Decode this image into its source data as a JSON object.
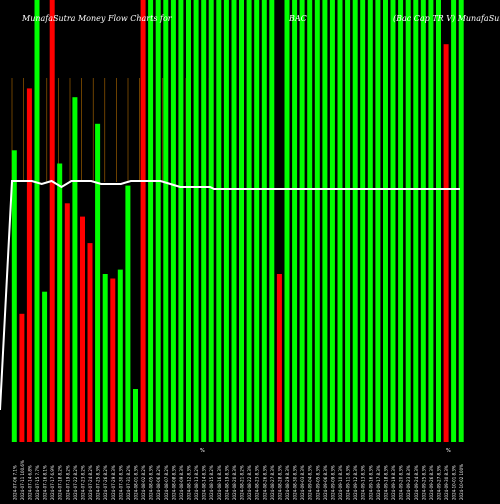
{
  "header": {
    "left": "MunafaSutra Money Flow  Charts for",
    "center": "BAC",
    "right": "(Bac Cap TR V)  MunafaSutra"
  },
  "chart_data": {
    "type": "bar",
    "title": "MunafaSutra Money Flow  Charts for BAC (Bac Cap TR V) MunafaSutra",
    "bar_colors": {
      "up": "#00ff00",
      "down": "#ff0000",
      "line": "#ffffff",
      "grid": "#b36b00"
    },
    "ylim": [
      0,
      100
    ],
    "categories": [
      "2024-07-06 7.1%",
      "2024-07-11 100.6%",
      "2024-07-14 6.8%",
      "2024-07-15 7.7%",
      "2024-07-16 8.1%",
      "2024-07-17 6.9%",
      "2024-07-18 8.2%",
      "2024-07-19 8.2%",
      "2024-07-22 8.2%",
      "2024-07-23 8.2%",
      "2024-07-24 8.2%",
      "2024-07-25 8.3%",
      "2024-07-26 8.2%",
      "2024-07-29 8.3%",
      "2024-07-30 8.3%",
      "2024-07-31 8.2%",
      "2024-08-01 8.3%",
      "2024-08-02 8.2%",
      "2024-08-05 8.3%",
      "2024-08-06 8.2%",
      "2024-08-07 8.2%",
      "2024-08-08 8.3%",
      "2024-08-09 8.3%",
      "2024-08-12 8.3%",
      "2024-08-13 8.2%",
      "2024-08-14 8.3%",
      "2024-08-15 8.2%",
      "2024-08-16 8.3%",
      "2024-08-19 8.3%",
      "2024-08-20 8.3%",
      "2024-08-21 8.2%",
      "2024-08-22 8.3%",
      "2024-08-23 8.3%",
      "2024-08-26 8.3%",
      "2024-08-27 8.3%",
      "2024-08-28 8.3%",
      "2024-08-29 8.3%",
      "2024-08-30 8.3%",
      "2024-09-03 8.3%",
      "2024-09-04 8.3%",
      "2024-09-05 8.3%",
      "2024-09-06 8.3%",
      "2024-09-09 8.3%",
      "2024-09-10 8.3%",
      "2024-09-11 8.3%",
      "2024-09-12 8.3%",
      "2024-09-13 8.3%",
      "2024-09-16 8.3%",
      "2024-09-17 8.3%",
      "2024-09-18 8.3%",
      "2024-09-19 8.3%",
      "2024-09-20 8.3%",
      "2024-09-23 8.3%",
      "2024-09-24 8.3%",
      "2024-09-25 8.3%",
      "2024-09-26 8.3%",
      "2024-09-27 8.3%",
      "2024-09-30 8.3%",
      "2024-10-01 8.3%",
      "2024-10-02 100%"
    ],
    "series": [
      {
        "values": [
          0,
          66,
          0,
          29,
          0,
          80,
          0,
          100,
          0,
          34,
          0,
          100,
          0,
          63,
          0,
          0,
          0,
          78,
          0,
          54,
          0,
          71,
          0,
          0,
          0,
          0,
          0,
          46,
          0,
          45,
          0,
          45,
          0,
          0,
          0,
          47,
          0,
          57,
          0,
          12,
          0,
          100,
          0,
          100,
          0,
          100,
          0,
          100,
          0,
          100,
          0,
          100,
          0,
          100,
          0,
          100,
          0,
          100,
          0,
          100
        ]
      }
    ],
    "bars": [
      {
        "value": 66,
        "dir": "up"
      },
      {
        "value": 29,
        "dir": "down"
      },
      {
        "value": 80,
        "dir": "down"
      },
      {
        "value": 100,
        "dir": "up"
      },
      {
        "value": 34,
        "dir": "up"
      },
      {
        "value": 100,
        "dir": "down"
      },
      {
        "value": 63,
        "dir": "up"
      },
      {
        "value": 54,
        "dir": "down"
      },
      {
        "value": 78,
        "dir": "up"
      },
      {
        "value": 51,
        "dir": "down"
      },
      {
        "value": 45,
        "dir": "down"
      },
      {
        "value": 72,
        "dir": "up"
      },
      {
        "value": 38,
        "dir": "up"
      },
      {
        "value": 37,
        "dir": "down"
      },
      {
        "value": 39,
        "dir": "up"
      },
      {
        "value": 58,
        "dir": "up"
      },
      {
        "value": 12,
        "dir": "up"
      },
      {
        "value": 100,
        "dir": "down"
      },
      {
        "value": 100,
        "dir": "up"
      },
      {
        "value": 100,
        "dir": "up"
      },
      {
        "value": 100,
        "dir": "up"
      },
      {
        "value": 100,
        "dir": "up"
      },
      {
        "value": 100,
        "dir": "up"
      },
      {
        "value": 100,
        "dir": "up"
      },
      {
        "value": 100,
        "dir": "up"
      },
      {
        "value": 100,
        "dir": "up"
      },
      {
        "value": 100,
        "dir": "up"
      },
      {
        "value": 100,
        "dir": "up"
      },
      {
        "value": 100,
        "dir": "up"
      },
      {
        "value": 100,
        "dir": "up"
      },
      {
        "value": 100,
        "dir": "up"
      },
      {
        "value": 100,
        "dir": "up"
      },
      {
        "value": 100,
        "dir": "up"
      },
      {
        "value": 100,
        "dir": "up"
      },
      {
        "value": 100,
        "dir": "up"
      },
      {
        "value": 38,
        "dir": "down"
      },
      {
        "value": 100,
        "dir": "up"
      },
      {
        "value": 100,
        "dir": "up"
      },
      {
        "value": 100,
        "dir": "up"
      },
      {
        "value": 100,
        "dir": "up"
      },
      {
        "value": 100,
        "dir": "up"
      },
      {
        "value": 100,
        "dir": "up"
      },
      {
        "value": 100,
        "dir": "up"
      },
      {
        "value": 100,
        "dir": "up"
      },
      {
        "value": 100,
        "dir": "up"
      },
      {
        "value": 100,
        "dir": "up"
      },
      {
        "value": 100,
        "dir": "up"
      },
      {
        "value": 100,
        "dir": "up"
      },
      {
        "value": 100,
        "dir": "up"
      },
      {
        "value": 100,
        "dir": "up"
      },
      {
        "value": 100,
        "dir": "up"
      },
      {
        "value": 100,
        "dir": "up"
      },
      {
        "value": 100,
        "dir": "up"
      },
      {
        "value": 100,
        "dir": "up"
      },
      {
        "value": 100,
        "dir": "up"
      },
      {
        "value": 100,
        "dir": "up"
      },
      {
        "value": 100,
        "dir": "up"
      },
      {
        "value": 90,
        "dir": "down"
      },
      {
        "value": 100,
        "dir": "up"
      },
      {
        "value": 100,
        "dir": "up"
      }
    ],
    "line": [
      10,
      74,
      74,
      73,
      74,
      72,
      74,
      74,
      74,
      73,
      73,
      73,
      74,
      74,
      74,
      74,
      73,
      72,
      72,
      72,
      72
    ],
    "markers": [
      "%",
      "%"
    ],
    "grid": "vertical"
  }
}
